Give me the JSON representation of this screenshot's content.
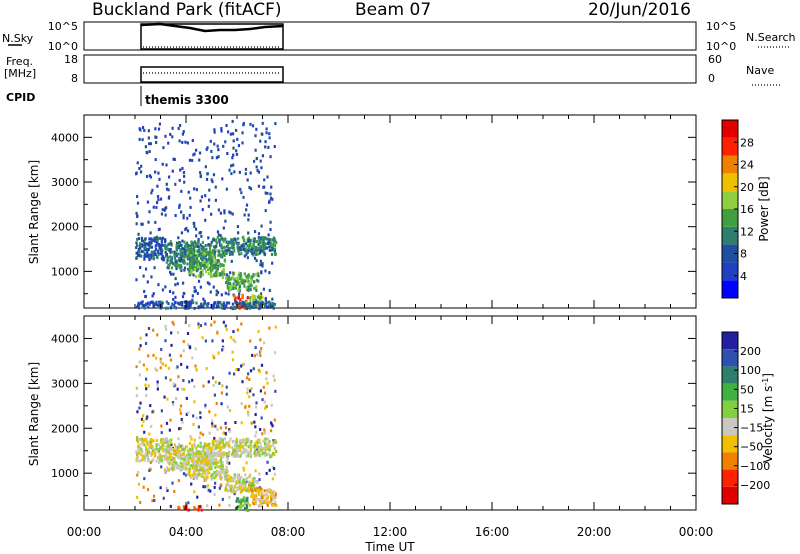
{
  "header": {
    "site": "Buckland Park (fitACF)",
    "beam": "Beam 07",
    "date": "20/Jun/2016"
  },
  "panels": {
    "nsky": {
      "label": "N.Sky",
      "ticks_left": [
        "10^5",
        "10^0"
      ],
      "ticks_right": [
        "10^5",
        "10^0"
      ],
      "right_label": "N.Search"
    },
    "freq": {
      "label_line1": "Freq.",
      "label_line2": "[MHz]",
      "ticks_left": [
        "18",
        "8"
      ],
      "ticks_right": [
        "60",
        "0"
      ],
      "right_label": "Nave"
    },
    "cpid": {
      "label": "CPID",
      "value": "themis 3300"
    }
  },
  "colors": {
    "power_scale": [
      "#0000ff",
      "#2040c0",
      "#1f4f9f",
      "#2f7f6f",
      "#40a040",
      "#90d040",
      "#f0c000",
      "#f08000",
      "#ff2000",
      "#e00000"
    ],
    "velocity_scale": [
      "#2020a0",
      "#3050b0",
      "#2f7f6f",
      "#40b040",
      "#80d040",
      "#c8c8c0",
      "#f0c000",
      "#f08000",
      "#ff2000",
      "#e00000"
    ]
  },
  "chart_data": [
    {
      "type": "heatmap",
      "name": "power",
      "xlabel": "Time UT",
      "ylabel": "Slant Range [km]",
      "x_ticks": [
        "00:00",
        "04:00",
        "08:00",
        "12:00",
        "16:00",
        "20:00",
        "00:00"
      ],
      "y_ticks": [
        "1000",
        "2000",
        "3000",
        "4000"
      ],
      "xlim_hours": [
        0,
        24
      ],
      "ylim_km": [
        180,
        4500
      ],
      "colorbar_label": "Power [dB]",
      "colorbar_ticks": [
        "4",
        "8",
        "12",
        "16",
        "20",
        "24",
        "28"
      ],
      "data_extent_hours": [
        2.0,
        7.5
      ],
      "clusters": [
        {
          "t": [
            2.0,
            3.2
          ],
          "r": [
            1300,
            1800
          ],
          "level": 2
        },
        {
          "t": [
            3.2,
            5.0
          ],
          "r": [
            1100,
            1700
          ],
          "level": 3
        },
        {
          "t": [
            4.0,
            5.5
          ],
          "r": [
            900,
            1500
          ],
          "level": 4
        },
        {
          "t": [
            5.0,
            7.5
          ],
          "r": [
            1400,
            1800
          ],
          "level": 3
        },
        {
          "t": [
            5.5,
            6.8
          ],
          "r": [
            600,
            1000
          ],
          "level": 4
        },
        {
          "t": [
            5.8,
            6.4
          ],
          "r": [
            200,
            500
          ],
          "level": 8
        },
        {
          "t": [
            6.3,
            7.0
          ],
          "r": [
            250,
            500
          ],
          "level": 5
        },
        {
          "t": [
            2.0,
            7.5
          ],
          "r": [
            200,
            350
          ],
          "level": 2
        }
      ]
    },
    {
      "type": "heatmap",
      "name": "velocity",
      "xlabel": "Time UT",
      "ylabel": "Slant Range [km]",
      "x_ticks": [
        "00:00",
        "04:00",
        "08:00",
        "12:00",
        "16:00",
        "20:00",
        "00:00"
      ],
      "y_ticks": [
        "1000",
        "2000",
        "3000",
        "4000"
      ],
      "xlim_hours": [
        0,
        24
      ],
      "ylim_km": [
        180,
        4500
      ],
      "colorbar_label_main": "Velocity [m s",
      "colorbar_label_sup": "-1",
      "colorbar_label_end": "]",
      "colorbar_ticks": [
        "200",
        "100",
        "50",
        "15",
        "−15",
        "−50",
        "−100",
        "−200"
      ],
      "data_extent_hours": [
        2.0,
        7.5
      ],
      "clusters": [
        {
          "t": [
            2.0,
            3.4
          ],
          "r": [
            1300,
            1800
          ],
          "level": 5
        },
        {
          "t": [
            3.2,
            5.0
          ],
          "r": [
            1100,
            1700
          ],
          "level": 5
        },
        {
          "t": [
            4.0,
            5.6
          ],
          "r": [
            900,
            1500
          ],
          "level": 5
        },
        {
          "t": [
            5.0,
            7.5
          ],
          "r": [
            1400,
            1800
          ],
          "level": 5
        },
        {
          "t": [
            5.5,
            6.8
          ],
          "r": [
            600,
            1000
          ],
          "level": 5
        },
        {
          "t": [
            5.9,
            6.4
          ],
          "r": [
            200,
            500
          ],
          "level": 3
        },
        {
          "t": [
            3.6,
            4.6
          ],
          "r": [
            200,
            300
          ],
          "level": 8
        },
        {
          "t": [
            6.5,
            7.5
          ],
          "r": [
            300,
            700
          ],
          "level": 6
        }
      ]
    }
  ]
}
